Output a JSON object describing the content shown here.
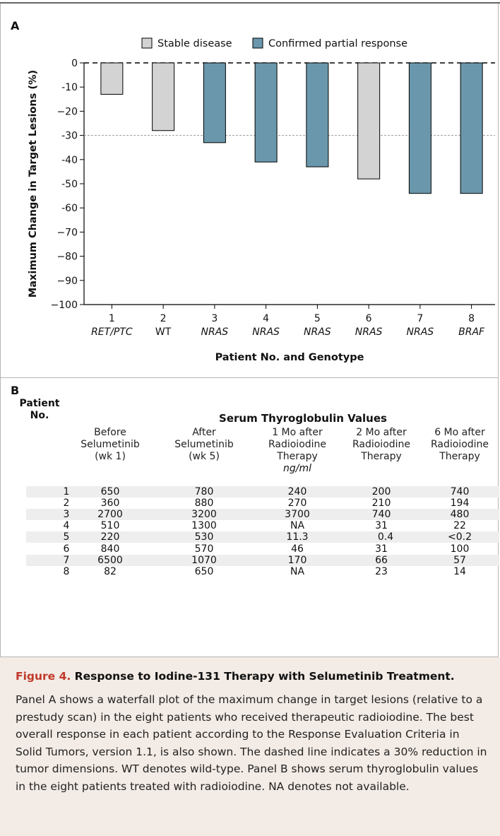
{
  "panel_a_label": "A",
  "panel_b_label": "B",
  "chart_data": {
    "type": "bar",
    "ylabel": "Maximum Change in Target Lesions (%)",
    "xlabel": "Patient No. and Genotype",
    "ylim": [
      -100,
      0
    ],
    "yticks": [
      0,
      -10,
      -20,
      -30,
      -40,
      -50,
      -60,
      -70,
      -80,
      -90,
      -100
    ],
    "ytick_labels": [
      "0",
      "-10",
      "−20",
      "-30",
      "-40",
      "-50",
      "-60",
      "−70",
      "−80",
      "−90",
      "−100"
    ],
    "reference_line": -30,
    "categories": [
      "1",
      "2",
      "3",
      "4",
      "5",
      "6",
      "7",
      "8"
    ],
    "genotypes": [
      "RET/PTC",
      "WT",
      "NRAS",
      "NRAS",
      "NRAS",
      "NRAS",
      "NRAS",
      "BRAF"
    ],
    "values": [
      -13,
      -28,
      -33,
      -41,
      -43,
      -48,
      -54,
      -54
    ],
    "response": [
      "Stable disease",
      "Stable disease",
      "Confirmed partial response",
      "Confirmed partial response",
      "Confirmed partial response",
      "Stable disease",
      "Confirmed partial response",
      "Confirmed partial response"
    ],
    "legend": [
      {
        "name": "Stable disease",
        "color": "#d3d3d3"
      },
      {
        "name": "Confirmed partial response",
        "color": "#6a97ab"
      }
    ],
    "legend_position": "top-right"
  },
  "table": {
    "patient_header_line1": "Patient",
    "patient_header_line2": "No.",
    "group_header": "Serum Thyroglobulin Values",
    "columns": [
      [
        "Before",
        "Selumetinib",
        "(wk 1)"
      ],
      [
        "After",
        "Selumetinib",
        "(wk 5)"
      ],
      [
        "1 Mo after",
        "Radioiodine",
        "Therapy"
      ],
      [
        "2 Mo after",
        "Radioiodine",
        "Therapy"
      ],
      [
        "6 Mo after",
        "Radioiodine",
        "Therapy"
      ]
    ],
    "unit": "ng/ml",
    "rows": [
      [
        "1",
        "650",
        "780",
        "240",
        "200",
        "740"
      ],
      [
        "2",
        "360",
        "880",
        "270",
        "210",
        "194"
      ],
      [
        "3",
        "2700",
        "3200",
        "3700",
        "740",
        "480"
      ],
      [
        "4",
        "510",
        "1300",
        "NA",
        "31",
        "22"
      ],
      [
        "5",
        "220",
        "530",
        "11.3",
        "0.4",
        "<0.2"
      ],
      [
        "6",
        "840",
        "570",
        "46",
        "31",
        "100"
      ],
      [
        "7",
        "6500",
        "1070",
        "170",
        "66",
        "57"
      ],
      [
        "8",
        "82",
        "650",
        "NA",
        "23",
        "14"
      ]
    ]
  },
  "caption": {
    "label": "Figure 4.",
    "title": "Response to Iodine-131 Therapy with Selumetinib Treatment.",
    "body": "Panel A shows a waterfall plot of the maximum change in target lesions (relative to a prestudy scan) in the eight patients who received therapeutic radioiodine. The best overall response in each patient according to the Response Evaluation Criteria in Solid Tumors, version 1.1, is also shown. The dashed line indicates a 30% reduction in tumor dimensions. WT denotes wild-type. Panel B shows serum thyroglobulin values in the eight patients treated with radioiodine. NA denotes not available."
  }
}
